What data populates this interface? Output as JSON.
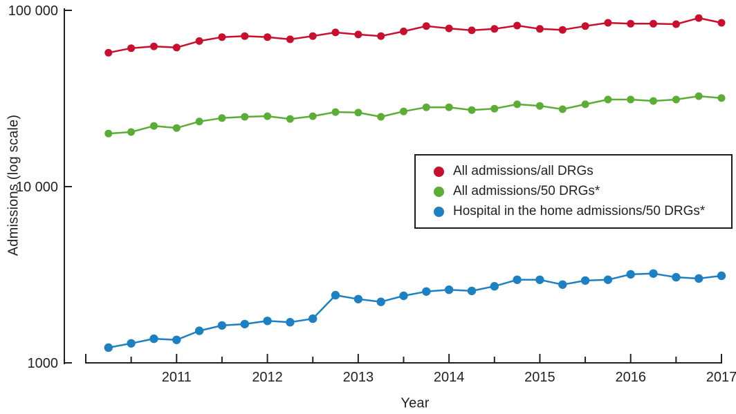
{
  "figure": {
    "background": "#ffffff",
    "text_color": "#231f20"
  },
  "legend": {
    "items": [
      {
        "label": "All admissions/all DRGs",
        "color": "#c8102e"
      },
      {
        "label": "All admissions/50 DRGs*",
        "color": "#5bad35"
      },
      {
        "label": "Hospital in the home admissions/50 DRGs*",
        "color": "#1d80c3"
      }
    ]
  },
  "chart_data": {
    "type": "line",
    "title": "",
    "xlabel": "Year",
    "ylabel": "Admissions (log scale)",
    "y_scale": "log",
    "ylim": [
      1000,
      100000
    ],
    "xlim": [
      2010,
      2017
    ],
    "grid": false,
    "legend_position": "center-right",
    "y_ticks": [
      {
        "label": "100 000",
        "value": 100000
      },
      {
        "label": "10 000",
        "value": 10000
      },
      {
        "label": "1000",
        "value": 1000
      }
    ],
    "x_tick_years": [
      2011,
      2012,
      2013,
      2014,
      2015,
      2016,
      2017
    ],
    "x": [
      2010.25,
      2010.5,
      2010.75,
      2011,
      2011.25,
      2011.5,
      2011.75,
      2012,
      2012.25,
      2012.5,
      2012.75,
      2013,
      2013.25,
      2013.5,
      2013.75,
      2014,
      2014.25,
      2014.5,
      2014.75,
      2015,
      2015.25,
      2015.5,
      2015.75,
      2016,
      2016.25,
      2016.5,
      2016.75,
      2017
    ],
    "series": [
      {
        "name": "All admissions/all DRGs",
        "color": "#c8102e",
        "point_radius": 5.5,
        "values": [
          57500,
          61000,
          62500,
          61500,
          67000,
          70500,
          71500,
          70500,
          68500,
          71500,
          75000,
          73000,
          71500,
          76000,
          81500,
          79000,
          77000,
          78500,
          82000,
          78500,
          77500,
          81500,
          85000,
          84000,
          84000,
          83500,
          90500,
          85000
        ]
      },
      {
        "name": "All admissions/50 DRGs*",
        "color": "#5bad35",
        "point_radius": 5.5,
        "values": [
          20000,
          20400,
          22100,
          21500,
          23400,
          24500,
          24900,
          25100,
          24200,
          25100,
          26500,
          26300,
          24900,
          26700,
          28200,
          28200,
          27200,
          27700,
          29300,
          28700,
          27500,
          29300,
          31200,
          31200,
          30600,
          31200,
          32600,
          31800
        ]
      },
      {
        "name": "Hospital in the home admissions/50 DRGs*",
        "color": "#1d80c3",
        "point_radius": 6.2,
        "values": [
          1220,
          1290,
          1370,
          1350,
          1520,
          1630,
          1660,
          1730,
          1700,
          1780,
          2420,
          2300,
          2220,
          2400,
          2540,
          2600,
          2560,
          2720,
          2960,
          2960,
          2780,
          2930,
          2960,
          3180,
          3210,
          3060,
          3010,
          3120
        ]
      }
    ]
  }
}
